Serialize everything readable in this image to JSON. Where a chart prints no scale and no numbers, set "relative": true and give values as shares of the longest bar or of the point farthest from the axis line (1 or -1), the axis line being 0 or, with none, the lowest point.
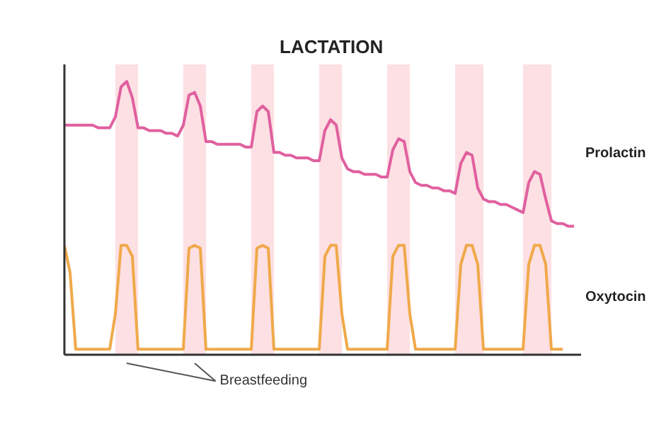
{
  "chart_data": {
    "type": "line",
    "title": "LACTATION",
    "relative": true,
    "categories": [
      null,
      null,
      null,
      null,
      null,
      null,
      null,
      null,
      null,
      null,
      null,
      null,
      null,
      null,
      null,
      null,
      null,
      null,
      null,
      null,
      null,
      null,
      null,
      null,
      null,
      null,
      null,
      null,
      null,
      null,
      null,
      null,
      null,
      null,
      null,
      null,
      null,
      null,
      null,
      null,
      null,
      null,
      null,
      null,
      null,
      null,
      null,
      null,
      null,
      null,
      null,
      null,
      null,
      null,
      null,
      null,
      null,
      null,
      null,
      null,
      null,
      null,
      null,
      null,
      null,
      null,
      null,
      null,
      null,
      null,
      null,
      null,
      null,
      null,
      null,
      null,
      null,
      null,
      null,
      null,
      null,
      null,
      null,
      null,
      null,
      null,
      null,
      null,
      null,
      null,
      null
    ],
    "series": [
      {
        "name": "Prolactin",
        "color": "#e0609f",
        "values": [
          0.84,
          0.84,
          0.84,
          0.84,
          0.84,
          0.84,
          0.83,
          0.83,
          0.83,
          0.87,
          0.98,
          1.0,
          0.94,
          0.83,
          0.83,
          0.82,
          0.82,
          0.82,
          0.81,
          0.81,
          0.8,
          0.84,
          0.95,
          0.96,
          0.91,
          0.78,
          0.78,
          0.77,
          0.77,
          0.77,
          0.77,
          0.77,
          0.76,
          0.76,
          0.89,
          0.91,
          0.89,
          0.74,
          0.74,
          0.73,
          0.73,
          0.72,
          0.72,
          0.72,
          0.71,
          0.71,
          0.82,
          0.86,
          0.84,
          0.72,
          0.68,
          0.67,
          0.67,
          0.66,
          0.66,
          0.66,
          0.65,
          0.65,
          0.75,
          0.79,
          0.78,
          0.67,
          0.63,
          0.62,
          0.62,
          0.61,
          0.61,
          0.6,
          0.6,
          0.59,
          0.7,
          0.74,
          0.73,
          0.61,
          0.57,
          0.56,
          0.56,
          0.55,
          0.55,
          0.54,
          0.53,
          0.52,
          0.63,
          0.67,
          0.66,
          0.57,
          0.49,
          0.48,
          0.48,
          0.47,
          0.47
        ]
      },
      {
        "name": "Oxytocin",
        "color": "#f0a94a",
        "values": [
          0.4,
          0.3,
          0.02,
          0.02,
          0.02,
          0.02,
          0.02,
          0.02,
          0.02,
          0.15,
          0.4,
          0.4,
          0.36,
          0.02,
          0.02,
          0.02,
          0.02,
          0.02,
          0.02,
          0.02,
          0.02,
          0.02,
          0.39,
          0.4,
          0.39,
          0.02,
          0.02,
          0.02,
          0.02,
          0.02,
          0.02,
          0.02,
          0.02,
          0.02,
          0.39,
          0.4,
          0.39,
          0.02,
          0.02,
          0.02,
          0.02,
          0.02,
          0.02,
          0.02,
          0.02,
          0.02,
          0.36,
          0.4,
          0.4,
          0.15,
          0.02,
          0.02,
          0.02,
          0.02,
          0.02,
          0.02,
          0.02,
          0.02,
          0.36,
          0.4,
          0.4,
          0.15,
          0.02,
          0.02,
          0.02,
          0.02,
          0.02,
          0.02,
          0.02,
          0.02,
          0.33,
          0.4,
          0.4,
          0.33,
          0.02,
          0.02,
          0.02,
          0.02,
          0.02,
          0.02,
          0.02,
          0.02,
          0.33,
          0.4,
          0.4,
          0.33,
          0.02,
          0.02,
          0.02,
          null,
          null
        ]
      }
    ],
    "annotations": [
      "Breastfeeding"
    ]
  }
}
